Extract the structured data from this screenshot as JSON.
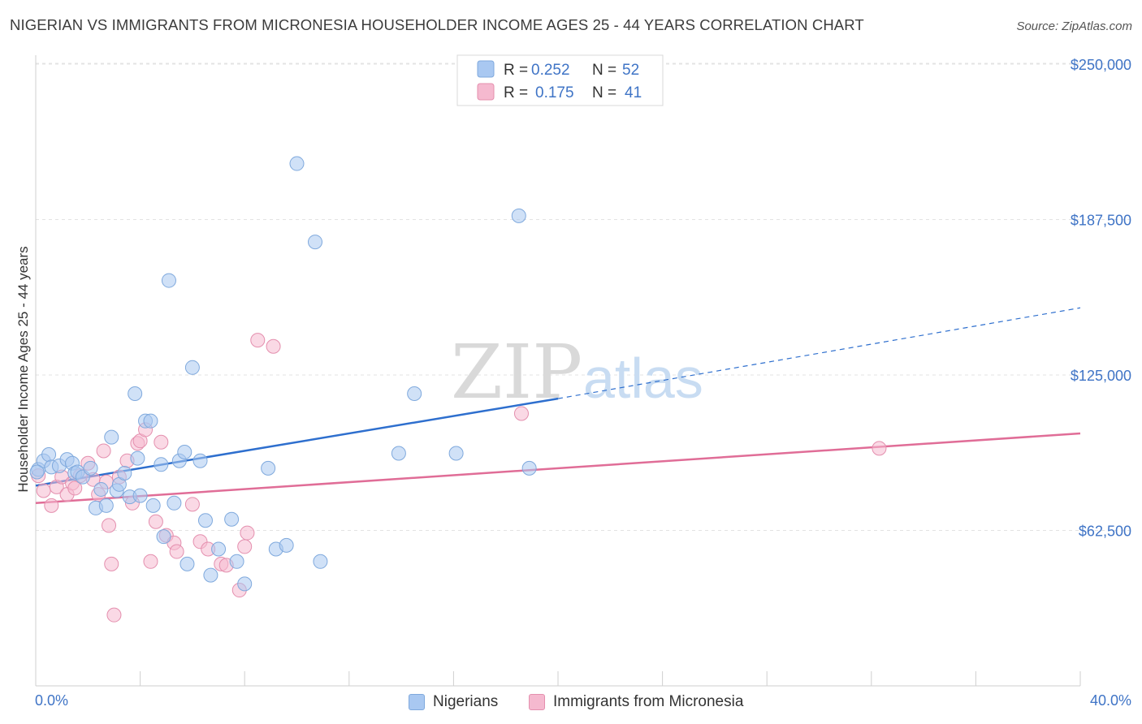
{
  "chart_data": {
    "type": "scatter",
    "title": "NIGERIAN VS IMMIGRANTS FROM MICRONESIA HOUSEHOLDER INCOME AGES 25 - 44 YEARS CORRELATION CHART",
    "source": "Source: ZipAtlas.com",
    "ylabel": "Householder Income Ages 25 - 44 years",
    "xlabel": "",
    "x_range": [
      0,
      40
    ],
    "x_unit": "%",
    "y_range": [
      0,
      250000
    ],
    "y_ticks": [
      62500,
      125000,
      187500,
      250000
    ],
    "y_tick_labels": [
      "$62,500",
      "$125,000",
      "$187,500",
      "$250,000"
    ],
    "x_tick_labels": [
      "0.0%",
      "40.0%"
    ],
    "watermark": "ZIPatlas",
    "grid": true,
    "legend_position": "top-center",
    "colors": {
      "nigerians_fill": "#a9c8f1",
      "nigerians_stroke": "#7fa9dd",
      "nigerians_line": "#2e6fce",
      "micronesia_fill": "#f5b9cf",
      "micronesia_stroke": "#e48fae",
      "micronesia_line": "#e06d97",
      "tick_label": "#3f74c6"
    },
    "legend": [
      {
        "r_label": "R =",
        "r_value": "0.252",
        "n_label": "N =",
        "n_value": "52"
      },
      {
        "r_label": "R =",
        "r_value": "0.175",
        "n_label": "N =",
        "n_value": "41"
      }
    ],
    "series": [
      {
        "name": "Nigerians",
        "trend": {
          "x0": 0,
          "y0": 80500,
          "x1": 20,
          "y1": 115500,
          "dash_to_x": 40,
          "dash_to_y": 152000
        },
        "points": [
          [
            0.1,
            87000
          ],
          [
            0.3,
            90500
          ],
          [
            0.5,
            93000
          ],
          [
            0.6,
            88000
          ],
          [
            0.9,
            88500
          ],
          [
            1.2,
            91000
          ],
          [
            1.4,
            89500
          ],
          [
            1.5,
            85500
          ],
          [
            1.6,
            86000
          ],
          [
            1.8,
            84000
          ],
          [
            2.1,
            87500
          ],
          [
            2.3,
            71500
          ],
          [
            2.5,
            79000
          ],
          [
            2.7,
            72500
          ],
          [
            2.9,
            100000
          ],
          [
            3.1,
            78500
          ],
          [
            3.2,
            81000
          ],
          [
            3.4,
            85500
          ],
          [
            3.6,
            76000
          ],
          [
            3.8,
            117500
          ],
          [
            3.9,
            91500
          ],
          [
            4.0,
            76500
          ],
          [
            4.2,
            106500
          ],
          [
            4.4,
            106500
          ],
          [
            4.5,
            72500
          ],
          [
            4.8,
            89000
          ],
          [
            4.9,
            60000
          ],
          [
            5.1,
            163000
          ],
          [
            5.3,
            73500
          ],
          [
            5.5,
            90500
          ],
          [
            5.7,
            94000
          ],
          [
            5.8,
            49000
          ],
          [
            6.0,
            128000
          ],
          [
            6.3,
            90500
          ],
          [
            6.5,
            66500
          ],
          [
            6.7,
            44500
          ],
          [
            7.0,
            55000
          ],
          [
            7.5,
            67000
          ],
          [
            7.7,
            50000
          ],
          [
            8.0,
            41000
          ],
          [
            8.9,
            87500
          ],
          [
            9.2,
            55000
          ],
          [
            9.6,
            56500
          ],
          [
            10.0,
            210000
          ],
          [
            10.7,
            178500
          ],
          [
            10.9,
            50000
          ],
          [
            13.9,
            93500
          ],
          [
            14.5,
            117500
          ],
          [
            16.1,
            93500
          ],
          [
            18.5,
            189000
          ],
          [
            18.9,
            87500
          ],
          [
            0.05,
            86000
          ]
        ]
      },
      {
        "name": "Immigrants from Micronesia",
        "trend": {
          "x0": 0,
          "y0": 73500,
          "x1": 40,
          "y1": 101500
        },
        "points": [
          [
            0.1,
            84500
          ],
          [
            0.3,
            78500
          ],
          [
            0.6,
            72500
          ],
          [
            0.8,
            80000
          ],
          [
            1.0,
            84000
          ],
          [
            1.2,
            77000
          ],
          [
            1.4,
            81500
          ],
          [
            1.5,
            79500
          ],
          [
            1.7,
            84500
          ],
          [
            2.0,
            89500
          ],
          [
            2.2,
            83000
          ],
          [
            2.4,
            77000
          ],
          [
            2.6,
            94500
          ],
          [
            2.7,
            82000
          ],
          [
            2.8,
            64500
          ],
          [
            2.9,
            49000
          ],
          [
            3.0,
            28500
          ],
          [
            3.2,
            84000
          ],
          [
            3.5,
            90500
          ],
          [
            3.7,
            73500
          ],
          [
            3.9,
            97500
          ],
          [
            4.0,
            98500
          ],
          [
            4.2,
            103000
          ],
          [
            4.4,
            50000
          ],
          [
            4.6,
            66000
          ],
          [
            4.8,
            98000
          ],
          [
            5.0,
            60500
          ],
          [
            5.3,
            57500
          ],
          [
            5.4,
            54000
          ],
          [
            6.0,
            73000
          ],
          [
            6.3,
            58000
          ],
          [
            6.6,
            55000
          ],
          [
            7.1,
            49000
          ],
          [
            7.3,
            48500
          ],
          [
            7.8,
            38500
          ],
          [
            8.0,
            56000
          ],
          [
            8.1,
            61500
          ],
          [
            8.5,
            139000
          ],
          [
            9.1,
            136500
          ],
          [
            18.6,
            109500
          ],
          [
            32.3,
            95500
          ]
        ]
      }
    ]
  },
  "labels": {
    "title": "NIGERIAN VS IMMIGRANTS FROM MICRONESIA HOUSEHOLDER INCOME AGES 25 - 44 YEARS CORRELATION CHART",
    "source": "Source: ZipAtlas.com",
    "legend_nigerians": "Nigerians",
    "legend_micronesia": "Immigrants from Micronesia"
  }
}
